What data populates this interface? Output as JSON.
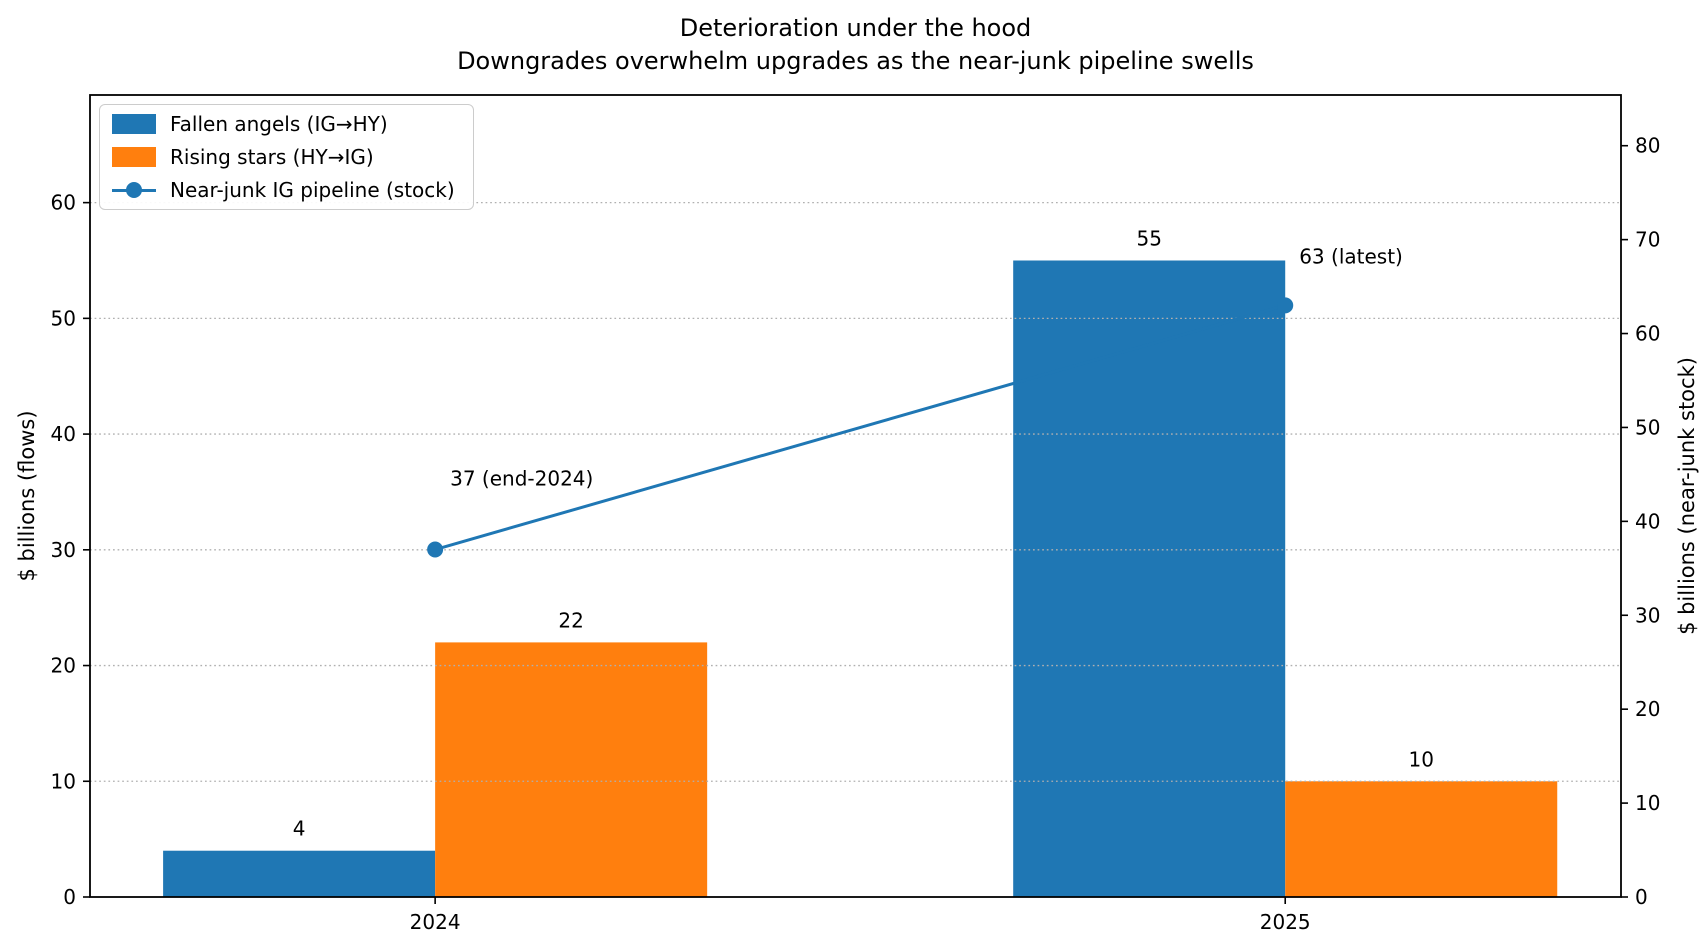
{
  "title": "Deterioration under the hood",
  "subtitle": "Downgrades overwhelm upgrades as the near-junk pipeline swells",
  "chart_data": {
    "type": "bar",
    "categories": [
      "2024",
      "2025"
    ],
    "series": [
      {
        "name": "Fallen angels (IG→HY)",
        "type": "bar",
        "axis": "left",
        "color": "#1f77b4",
        "offset": -0.16,
        "values": [
          4,
          55
        ],
        "value_labels": [
          "4",
          "55"
        ]
      },
      {
        "name": "Rising stars (HY→IG)",
        "type": "bar",
        "axis": "left",
        "color": "#ff7f0e",
        "offset": 0.16,
        "values": [
          22,
          10
        ],
        "value_labels": [
          "22",
          "10"
        ]
      },
      {
        "name": "Near-junk IG pipeline (stock)",
        "type": "line",
        "axis": "right",
        "color": "#1f77b4",
        "values": [
          37,
          63
        ],
        "annotations": [
          {
            "text": "37 (end-2024)",
            "dx": 15,
            "dy": -64
          },
          {
            "text": "63 (latest)",
            "dx": 14,
            "dy": -42
          }
        ]
      }
    ],
    "xlabel": "",
    "ylabel_left": "$ billions (flows)",
    "ylabel_right": "$ billions (near-junk stock)",
    "yticks_left": [
      0,
      10,
      20,
      30,
      40,
      50,
      60
    ],
    "yticks_right": [
      0,
      10,
      20,
      30,
      40,
      50,
      60,
      70,
      80
    ],
    "ylim_left": [
      0,
      69.3
    ],
    "ylim_right": [
      0,
      85.4
    ],
    "xlim": [
      -0.406,
      1.395
    ],
    "bar_width": 0.32,
    "grid": "horizontal dotted lines on left-axis ticks",
    "legend_position": "upper left"
  }
}
